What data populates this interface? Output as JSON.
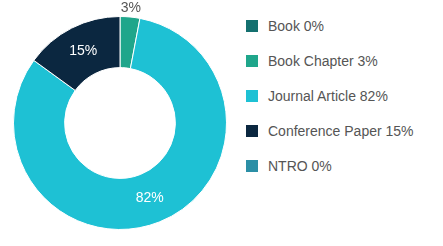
{
  "chart_data": {
    "type": "doughnut",
    "categories": [
      "Book 0%",
      "Book Chapter 3%",
      "Journal Article 82%",
      "Conference Paper 15%",
      "NTRO 0%"
    ],
    "values": [
      0,
      3,
      82,
      15,
      0
    ],
    "value_labels": [
      null,
      "3%",
      "82%",
      "15%",
      null
    ],
    "colors": [
      "#14706f",
      "#1fa68b",
      "#1ec1d4",
      "#0b2740",
      "#2b8fa6"
    ],
    "legend": "right",
    "data_labels": true
  }
}
